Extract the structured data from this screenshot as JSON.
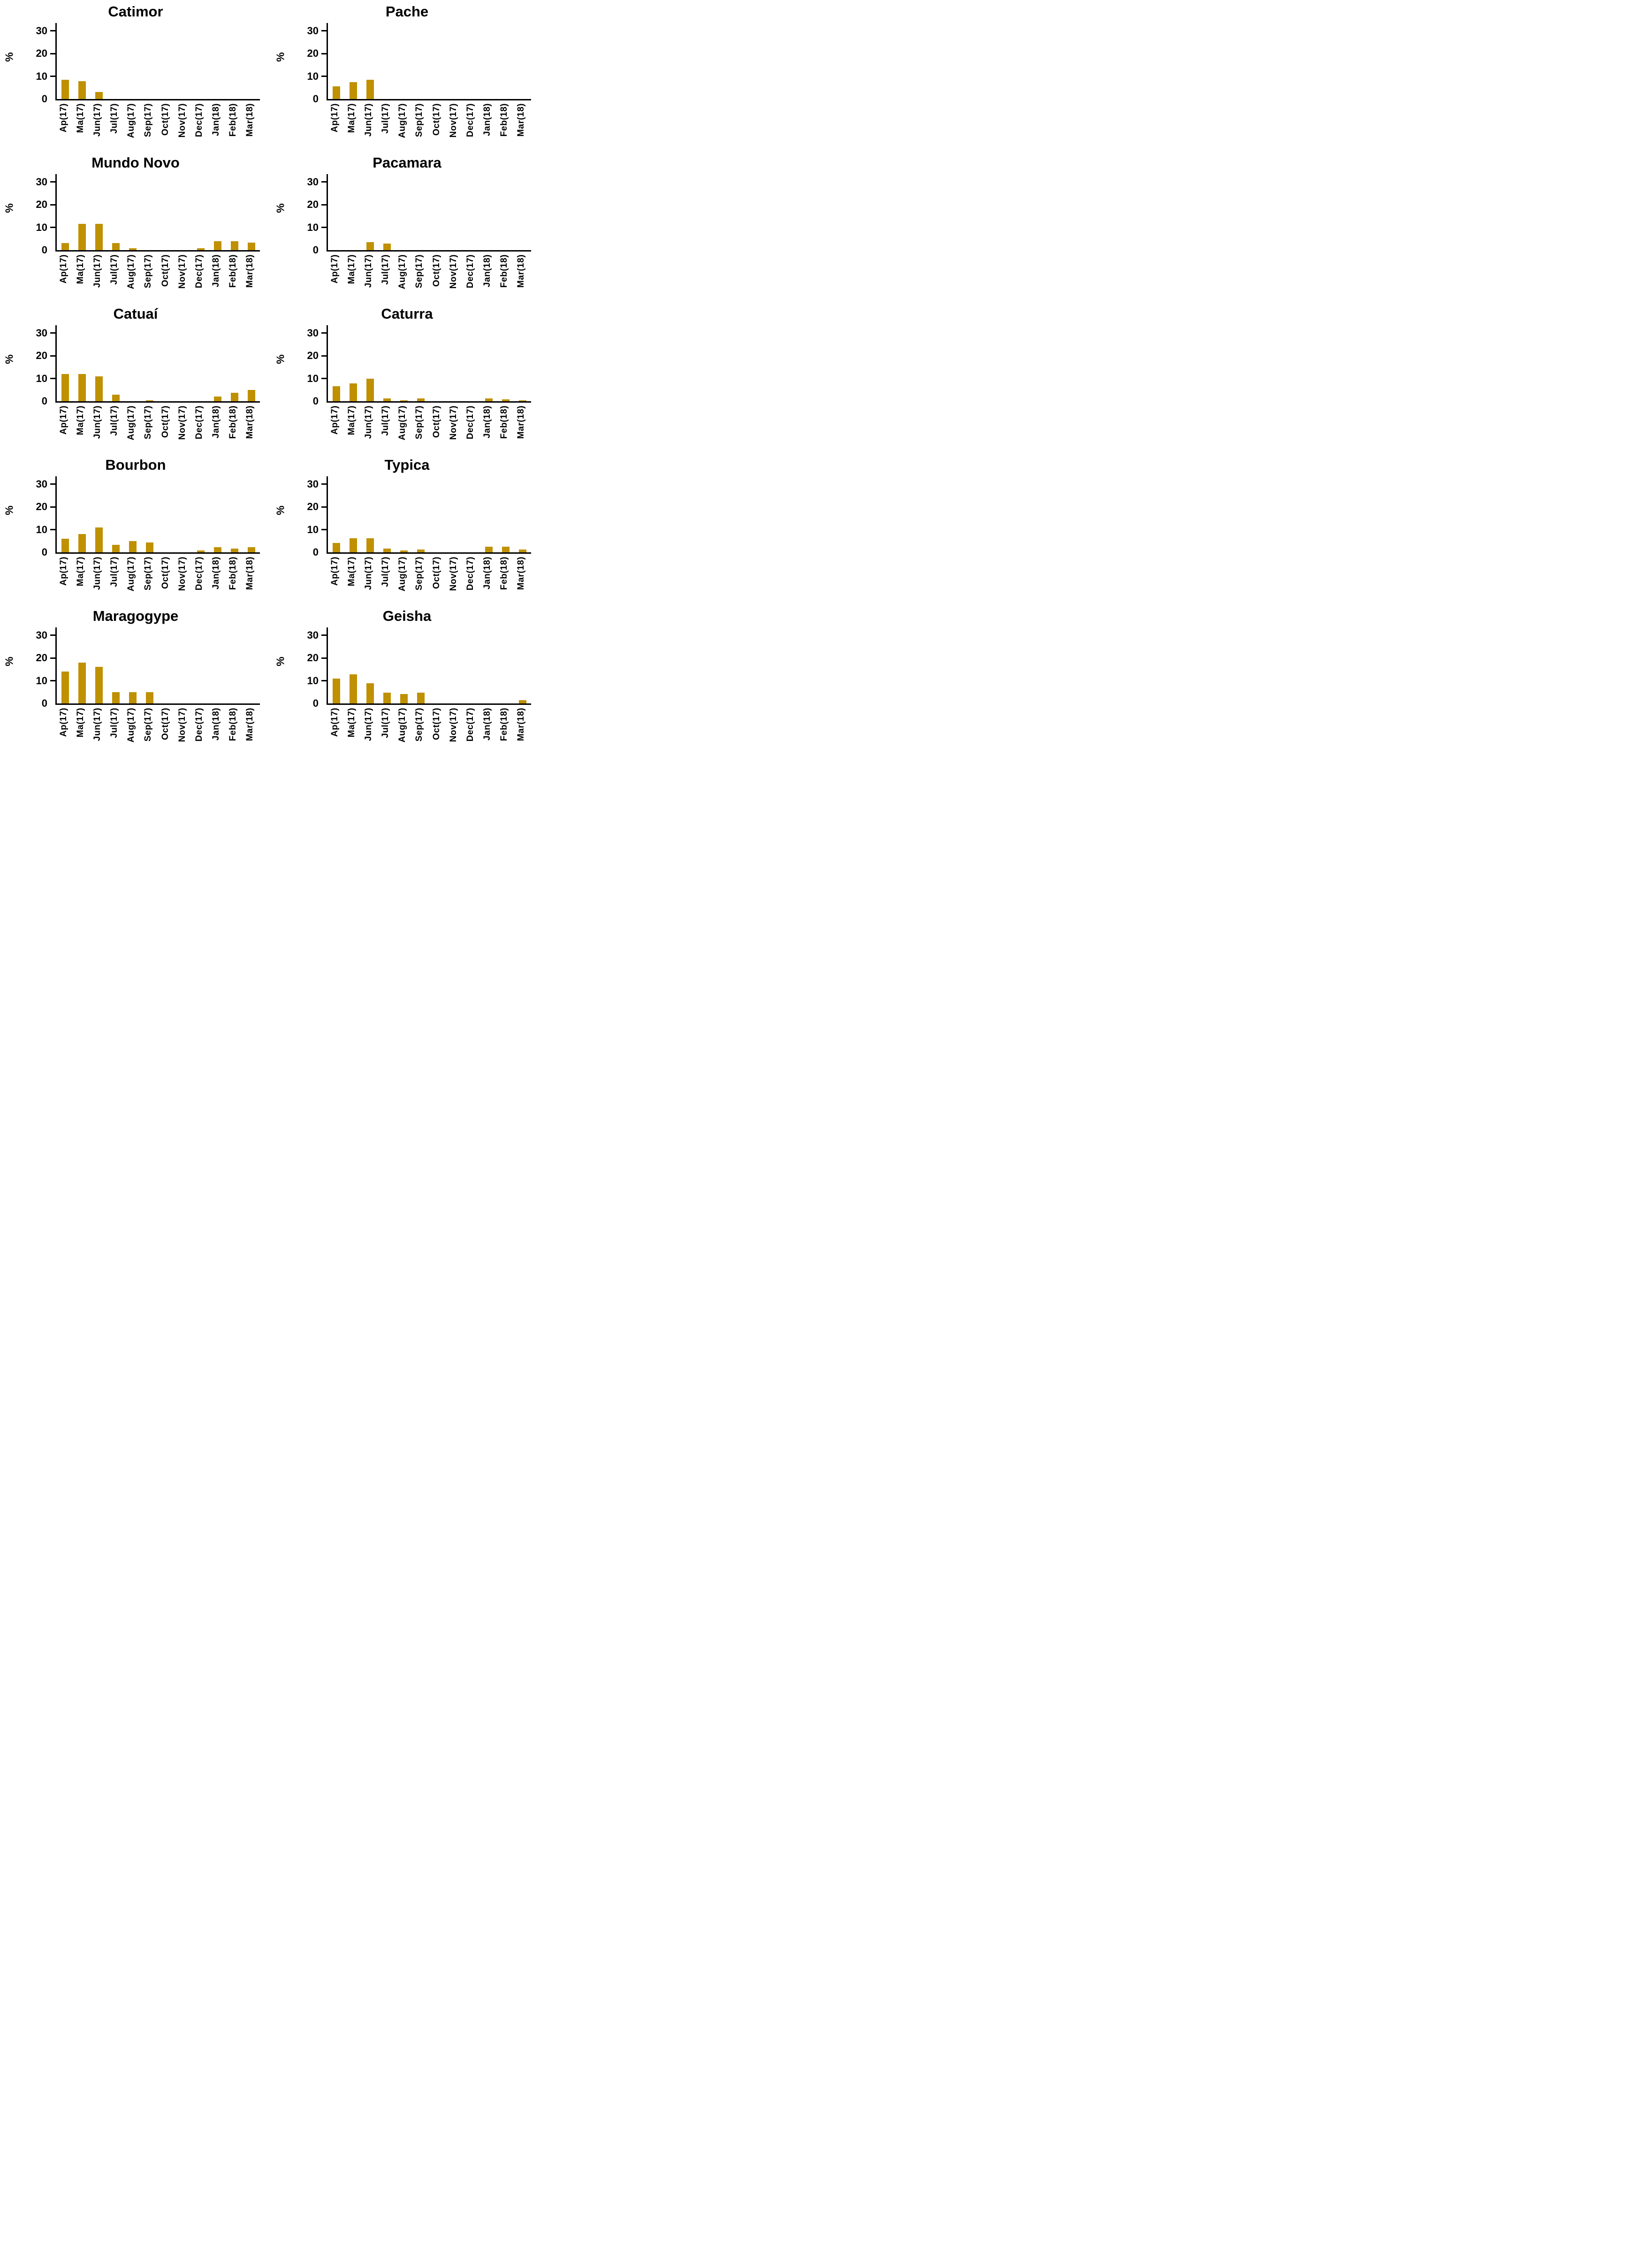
{
  "style": {
    "bar_color": "#BF9000",
    "axis_color": "#000000",
    "text_color": "#000000",
    "background": "#FFFFFF"
  },
  "chart_data": [
    {
      "type": "bar",
      "title": "Catimor",
      "xlabel": "",
      "ylabel": "%",
      "yticks": [
        0,
        10,
        20,
        30
      ],
      "ylim": [
        0,
        33
      ],
      "grid": false,
      "legend": "none",
      "categories": [
        "Ap(17)",
        "Ma(17)",
        "Jun(17)",
        "Jul(17)",
        "Aug(17)",
        "Sep(17)",
        "Oct(17)",
        "Nov(17)",
        "Dec(17)",
        "Jan(18)",
        "Feb(18)",
        "Mar(18)"
      ],
      "values": [
        8.5,
        7.8,
        3,
        0,
        0,
        0,
        0,
        0,
        0,
        0,
        0,
        0
      ]
    },
    {
      "type": "bar",
      "title": "Pache",
      "xlabel": "",
      "ylabel": "%",
      "yticks": [
        0,
        10,
        20,
        30
      ],
      "ylim": [
        0,
        33
      ],
      "grid": false,
      "legend": "none",
      "categories": [
        "Ap(17)",
        "Ma(17)",
        "Jun(17)",
        "Jul(17)",
        "Aug(17)",
        "Sep(17)",
        "Oct(17)",
        "Nov(17)",
        "Dec(17)",
        "Jan(18)",
        "Feb(18)",
        "Mar(18)"
      ],
      "values": [
        5.5,
        7.5,
        8.5,
        0,
        0,
        0,
        0,
        0,
        0,
        0,
        0,
        0
      ]
    },
    {
      "type": "bar",
      "title": "Mundo Novo",
      "xlabel": "",
      "ylabel": "%",
      "yticks": [
        0,
        10,
        20,
        30
      ],
      "ylim": [
        0,
        33
      ],
      "grid": false,
      "legend": "none",
      "categories": [
        "Ap(17)",
        "Ma(17)",
        "Jun(17)",
        "Jul(17)",
        "Aug(17)",
        "Sep(17)",
        "Oct(17)",
        "Nov(17)",
        "Dec(17)",
        "Jan(18)",
        "Feb(18)",
        "Mar(18)"
      ],
      "values": [
        3,
        11.5,
        11.5,
        3,
        0.8,
        0,
        0,
        0,
        0.8,
        4,
        4,
        3.2
      ]
    },
    {
      "type": "bar",
      "title": "Pacamara",
      "xlabel": "",
      "ylabel": "%",
      "yticks": [
        0,
        10,
        20,
        30
      ],
      "ylim": [
        0,
        33
      ],
      "grid": false,
      "legend": "none",
      "categories": [
        "Ap(17)",
        "Ma(17)",
        "Jun(17)",
        "Jul(17)",
        "Aug(17)",
        "Sep(17)",
        "Oct(17)",
        "Nov(17)",
        "Dec(17)",
        "Jan(18)",
        "Feb(18)",
        "Mar(18)"
      ],
      "values": [
        0,
        0,
        3.5,
        2.8,
        0,
        0,
        0,
        0,
        0,
        0,
        0,
        0
      ]
    },
    {
      "type": "bar",
      "title": "Catuaí",
      "xlabel": "",
      "ylabel": "%",
      "yticks": [
        0,
        10,
        20,
        30
      ],
      "ylim": [
        0,
        33
      ],
      "grid": false,
      "legend": "none",
      "categories": [
        "Ap(17)",
        "Ma(17)",
        "Jun(17)",
        "Jul(17)",
        "Aug(17)",
        "Sep(17)",
        "Oct(17)",
        "Nov(17)",
        "Dec(17)",
        "Jan(18)",
        "Feb(18)",
        "Mar(18)"
      ],
      "values": [
        12,
        12,
        11,
        2.8,
        0,
        0.5,
        0,
        0,
        0,
        2,
        3.8,
        5
      ]
    },
    {
      "type": "bar",
      "title": "Caturra",
      "xlabel": "",
      "ylabel": "%",
      "yticks": [
        0,
        10,
        20,
        30
      ],
      "ylim": [
        0,
        33
      ],
      "grid": false,
      "legend": "none",
      "categories": [
        "Ap(17)",
        "Ma(17)",
        "Jun(17)",
        "Jul(17)",
        "Aug(17)",
        "Sep(17)",
        "Oct(17)",
        "Nov(17)",
        "Dec(17)",
        "Jan(18)",
        "Feb(18)",
        "Mar(18)"
      ],
      "values": [
        6.7,
        7.9,
        10,
        1.2,
        0.4,
        1.2,
        0,
        0,
        0,
        1.2,
        0.9,
        0.4
      ]
    },
    {
      "type": "bar",
      "title": "Bourbon",
      "xlabel": "",
      "ylabel": "%",
      "yticks": [
        0,
        10,
        20,
        30
      ],
      "ylim": [
        0,
        33
      ],
      "grid": false,
      "legend": "none",
      "categories": [
        "Ap(17)",
        "Ma(17)",
        "Jun(17)",
        "Jul(17)",
        "Aug(17)",
        "Sep(17)",
        "Oct(17)",
        "Nov(17)",
        "Dec(17)",
        "Jan(18)",
        "Feb(18)",
        "Mar(18)"
      ],
      "values": [
        6,
        8,
        11,
        3.3,
        5,
        4.4,
        0,
        0,
        0.9,
        2.3,
        1.6,
        2.3
      ]
    },
    {
      "type": "bar",
      "title": "Typica",
      "xlabel": "",
      "ylabel": "%",
      "yticks": [
        0,
        10,
        20,
        30
      ],
      "ylim": [
        0,
        33
      ],
      "grid": false,
      "legend": "none",
      "categories": [
        "Ap(17)",
        "Ma(17)",
        "Jun(17)",
        "Jul(17)",
        "Aug(17)",
        "Sep(17)",
        "Oct(17)",
        "Nov(17)",
        "Dec(17)",
        "Jan(18)",
        "Feb(18)",
        "Mar(18)"
      ],
      "values": [
        4.1,
        6.2,
        6.2,
        1.7,
        0.9,
        1.3,
        0,
        0,
        0,
        2.4,
        2.4,
        1.3
      ]
    },
    {
      "type": "bar",
      "title": "Maragogype",
      "xlabel": "",
      "ylabel": "%",
      "yticks": [
        0,
        10,
        20,
        30
      ],
      "ylim": [
        0,
        33
      ],
      "grid": false,
      "legend": "none",
      "categories": [
        "Ap(17)",
        "Ma(17)",
        "Jun(17)",
        "Jul(17)",
        "Aug(17)",
        "Sep(17)",
        "Oct(17)",
        "Nov(17)",
        "Dec(17)",
        "Jan(18)",
        "Feb(18)",
        "Mar(18)"
      ],
      "values": [
        14,
        18,
        16,
        5,
        5,
        5,
        0,
        0,
        0,
        0,
        0,
        0
      ]
    },
    {
      "type": "bar",
      "title": "Geisha",
      "xlabel": "",
      "ylabel": "%",
      "yticks": [
        0,
        10,
        20,
        30
      ],
      "ylim": [
        0,
        33
      ],
      "grid": false,
      "legend": "none",
      "categories": [
        "Ap(17)",
        "Ma(17)",
        "Jun(17)",
        "Jul(17)",
        "Aug(17)",
        "Sep(17)",
        "Oct(17)",
        "Nov(17)",
        "Dec(17)",
        "Jan(18)",
        "Feb(18)",
        "Mar(18)"
      ],
      "values": [
        11,
        12.8,
        8.8,
        4.8,
        4.2,
        4.7,
        0,
        0,
        0,
        0,
        0,
        1.5
      ]
    }
  ]
}
